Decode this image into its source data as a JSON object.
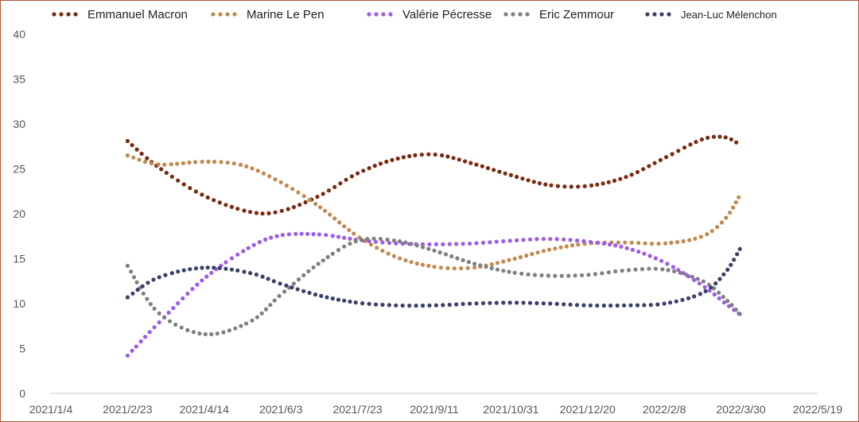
{
  "chart_data": {
    "type": "line",
    "title": "",
    "xlabel": "",
    "ylabel": "",
    "ylim": [
      0,
      40
    ],
    "yticks": [
      "0",
      "5",
      "10",
      "15",
      "20",
      "25",
      "30",
      "35",
      "40"
    ],
    "xticks": [
      "2021/1/4",
      "2021/2/23",
      "2021/4/14",
      "2021/6/3",
      "2021/7/23",
      "2021/9/11",
      "2021/10/31",
      "2021/12/20",
      "2022/2/8",
      "2022/3/30",
      "2022/5/19"
    ],
    "xlim": [
      "2021/1/4",
      "2022/5/19"
    ],
    "grid": false,
    "legend_position": "top",
    "series": [
      {
        "name": "Emmanuel Macron",
        "color": "#7b2a12",
        "points": [
          [
            "2021/2/23",
            28.1
          ],
          [
            "2021/3/15",
            25.2
          ],
          [
            "2021/4/14",
            22.0
          ],
          [
            "2021/5/14",
            20.2
          ],
          [
            "2021/6/3",
            20.3
          ],
          [
            "2021/6/28",
            22.0
          ],
          [
            "2021/7/23",
            24.5
          ],
          [
            "2021/8/17",
            26.1
          ],
          [
            "2021/9/11",
            26.6
          ],
          [
            "2021/10/6",
            25.6
          ],
          [
            "2021/10/31",
            24.3
          ],
          [
            "2021/11/25",
            23.2
          ],
          [
            "2021/12/20",
            23.1
          ],
          [
            "2022/1/14",
            24.1
          ],
          [
            "2022/2/8",
            26.2
          ],
          [
            "2022/3/5",
            28.3
          ],
          [
            "2022/3/20",
            28.5
          ],
          [
            "2022/3/30",
            27.6
          ]
        ]
      },
      {
        "name": "Marine Le Pen",
        "color": "#c08a50",
        "points": [
          [
            "2021/2/23",
            26.5
          ],
          [
            "2021/3/15",
            25.5
          ],
          [
            "2021/4/14",
            25.8
          ],
          [
            "2021/5/9",
            25.4
          ],
          [
            "2021/6/3",
            23.5
          ],
          [
            "2021/6/28",
            20.8
          ],
          [
            "2021/7/23",
            17.5
          ],
          [
            "2021/8/17",
            15.2
          ],
          [
            "2021/9/11",
            14.1
          ],
          [
            "2021/10/6",
            14.0
          ],
          [
            "2021/10/31",
            14.9
          ],
          [
            "2021/11/25",
            16.0
          ],
          [
            "2021/12/20",
            16.7
          ],
          [
            "2022/1/14",
            16.8
          ],
          [
            "2022/2/8",
            16.7
          ],
          [
            "2022/3/5",
            17.5
          ],
          [
            "2022/3/20",
            19.5
          ],
          [
            "2022/3/30",
            22.3
          ]
        ]
      },
      {
        "name": "Valérie Pécresse",
        "color": "#9b5de8",
        "points": [
          [
            "2021/2/23",
            4.2
          ],
          [
            "2021/3/15",
            7.8
          ],
          [
            "2021/4/14",
            12.8
          ],
          [
            "2021/5/14",
            16.3
          ],
          [
            "2021/6/3",
            17.6
          ],
          [
            "2021/6/28",
            17.7
          ],
          [
            "2021/7/23",
            17.1
          ],
          [
            "2021/8/17",
            16.7
          ],
          [
            "2021/9/11",
            16.6
          ],
          [
            "2021/10/6",
            16.7
          ],
          [
            "2021/10/31",
            17.0
          ],
          [
            "2021/11/25",
            17.2
          ],
          [
            "2021/12/20",
            16.9
          ],
          [
            "2022/1/14",
            16.2
          ],
          [
            "2022/2/8",
            14.6
          ],
          [
            "2022/3/5",
            12.0
          ],
          [
            "2022/3/20",
            10.0
          ],
          [
            "2022/3/30",
            8.7
          ]
        ]
      },
      {
        "name": "Eric Zemmour",
        "color": "#808080",
        "points": [
          [
            "2021/2/23",
            14.2
          ],
          [
            "2021/3/15",
            9.0
          ],
          [
            "2021/4/14",
            6.6
          ],
          [
            "2021/5/14",
            8.0
          ],
          [
            "2021/6/3",
            11.0
          ],
          [
            "2021/6/28",
            14.5
          ],
          [
            "2021/7/23",
            17.0
          ],
          [
            "2021/8/17",
            17.0
          ],
          [
            "2021/9/11",
            15.9
          ],
          [
            "2021/10/6",
            14.5
          ],
          [
            "2021/10/31",
            13.5
          ],
          [
            "2021/11/25",
            13.1
          ],
          [
            "2021/12/20",
            13.2
          ],
          [
            "2022/1/14",
            13.7
          ],
          [
            "2022/2/8",
            13.8
          ],
          [
            "2022/3/5",
            12.5
          ],
          [
            "2022/3/20",
            10.5
          ],
          [
            "2022/3/30",
            8.7
          ]
        ]
      },
      {
        "name": "Jean-Luc Mélenchon",
        "color": "#3a4068",
        "points": [
          [
            "2021/2/23",
            10.7
          ],
          [
            "2021/3/15",
            12.9
          ],
          [
            "2021/4/14",
            14.0
          ],
          [
            "2021/5/14",
            13.4
          ],
          [
            "2021/6/3",
            12.2
          ],
          [
            "2021/6/28",
            10.9
          ],
          [
            "2021/7/23",
            10.1
          ],
          [
            "2021/8/17",
            9.8
          ],
          [
            "2021/9/11",
            9.8
          ],
          [
            "2021/10/6",
            10.0
          ],
          [
            "2021/10/31",
            10.1
          ],
          [
            "2021/11/25",
            10.0
          ],
          [
            "2021/12/20",
            9.8
          ],
          [
            "2022/1/14",
            9.8
          ],
          [
            "2022/2/8",
            10.0
          ],
          [
            "2022/3/5",
            11.2
          ],
          [
            "2022/3/20",
            13.5
          ],
          [
            "2022/3/30",
            16.3
          ]
        ]
      }
    ]
  }
}
